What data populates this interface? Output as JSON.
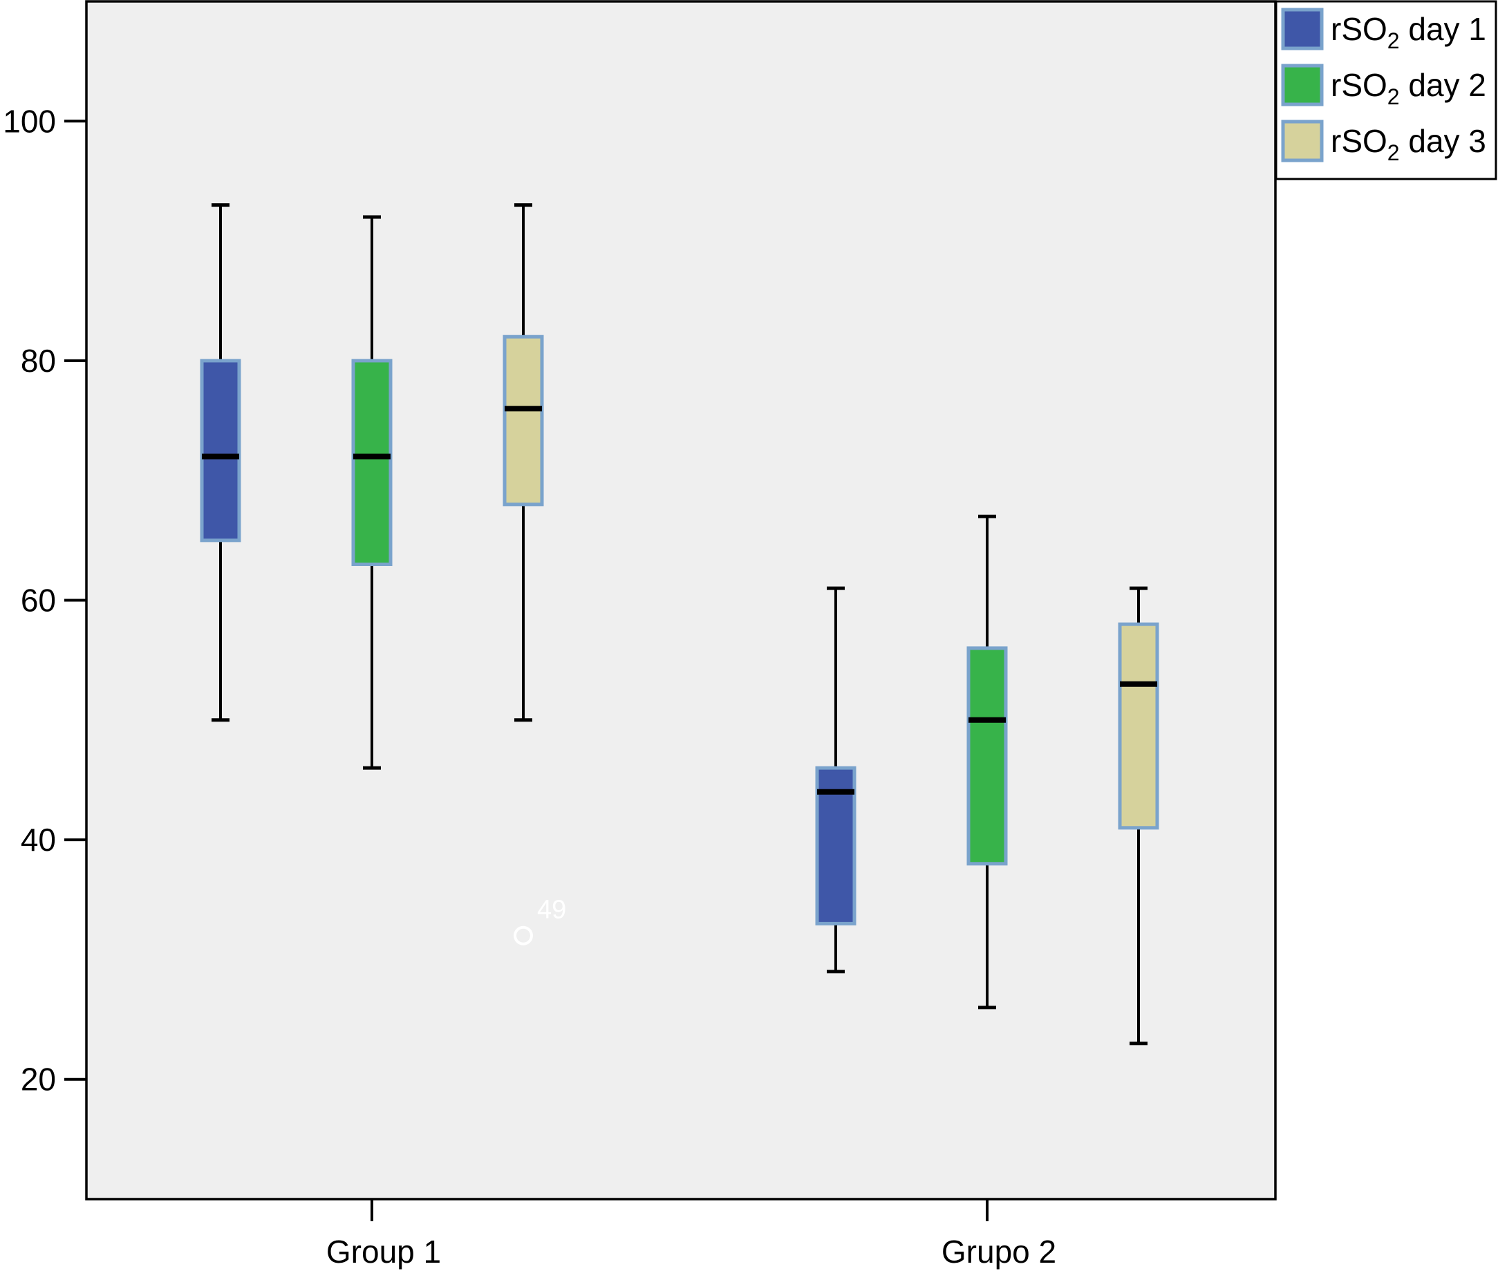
{
  "chart_data": {
    "type": "box",
    "title": "",
    "xlabel": "",
    "ylabel": "",
    "ylim": [
      10,
      110
    ],
    "yticks": [
      20,
      40,
      60,
      80,
      100
    ],
    "grid": false,
    "legend_position": "top-right",
    "categories": [
      "Group 1",
      "Grupo 2"
    ],
    "series": [
      {
        "name": "rSO2 day 1",
        "legend_base": "rSO",
        "legend_sub": "2",
        "legend_rest": " day 1",
        "color": "#3f57a8",
        "boxes": [
          {
            "min": 50,
            "q1": 65,
            "median": 72,
            "q3": 80,
            "max": 93
          },
          {
            "min": 29,
            "q1": 33,
            "median": 44,
            "q3": 46,
            "max": 61
          }
        ]
      },
      {
        "name": "rSO2 day 2",
        "legend_base": "rSO",
        "legend_sub": "2",
        "legend_rest": " day 2",
        "color": "#37b34a",
        "boxes": [
          {
            "min": 46,
            "q1": 63,
            "median": 72,
            "q3": 80,
            "max": 92
          },
          {
            "min": 26,
            "q1": 38,
            "median": 50,
            "q3": 56,
            "max": 67
          }
        ]
      },
      {
        "name": "rSO2 day 3",
        "legend_base": "rSO",
        "legend_sub": "2",
        "legend_rest": " day 3",
        "color": "#d6d29c",
        "boxes": [
          {
            "min": 50,
            "q1": 68,
            "median": 76,
            "q3": 82,
            "max": 93
          },
          {
            "min": 23,
            "q1": 41,
            "median": 53,
            "q3": 58,
            "max": 61
          }
        ]
      }
    ],
    "outliers": [
      {
        "category": "Group 1",
        "series": "rSO2 day 3",
        "value": 32,
        "label": "49"
      }
    ]
  }
}
